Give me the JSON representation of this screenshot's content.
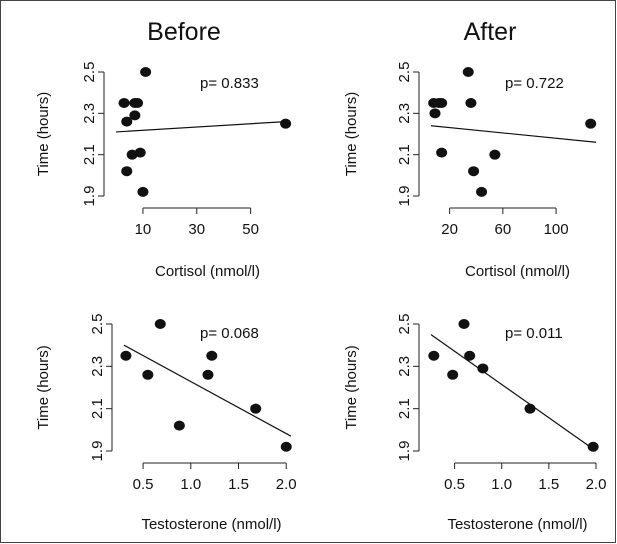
{
  "chart_data": [
    {
      "type": "scatter",
      "column_title": "Before",
      "xlabel": "Cortisol (nmol/l)",
      "ylabel": "Time (hours)",
      "annotation": "p= 0.833",
      "xlim": [
        0,
        65
      ],
      "ylim": [
        1.9,
        2.5
      ],
      "xticks": [
        "10",
        "30",
        "50"
      ],
      "yticks": [
        "1.9",
        "2.1",
        "2.3",
        "2.5"
      ],
      "points": [
        {
          "x": 3,
          "y": 2.35
        },
        {
          "x": 4,
          "y": 2.02
        },
        {
          "x": 4,
          "y": 2.26
        },
        {
          "x": 6,
          "y": 2.1
        },
        {
          "x": 7,
          "y": 2.29
        },
        {
          "x": 7,
          "y": 2.35
        },
        {
          "x": 8,
          "y": 2.35
        },
        {
          "x": 9,
          "y": 2.11
        },
        {
          "x": 10,
          "y": 1.92
        },
        {
          "x": 11,
          "y": 2.5
        },
        {
          "x": 63,
          "y": 2.25
        }
      ],
      "fit": [
        [
          0,
          2.21
        ],
        [
          63,
          2.26
        ]
      ]
    },
    {
      "type": "scatter",
      "column_title": "After",
      "xlabel": "Cortisol (nmol/l)",
      "ylabel": "Time (hours)",
      "annotation": "p= 0.722",
      "xlim": [
        6,
        130
      ],
      "ylim": [
        1.9,
        2.5
      ],
      "xticks": [
        "20",
        "60",
        "100"
      ],
      "yticks": [
        "1.9",
        "2.1",
        "2.3",
        "2.5"
      ],
      "points": [
        {
          "x": 8,
          "y": 2.35
        },
        {
          "x": 9,
          "y": 2.3
        },
        {
          "x": 12,
          "y": 2.35
        },
        {
          "x": 14,
          "y": 2.35
        },
        {
          "x": 14,
          "y": 2.11
        },
        {
          "x": 34,
          "y": 2.5
        },
        {
          "x": 36,
          "y": 2.35
        },
        {
          "x": 38,
          "y": 2.02
        },
        {
          "x": 44,
          "y": 1.92
        },
        {
          "x": 54,
          "y": 2.1
        },
        {
          "x": 126,
          "y": 2.25
        }
      ],
      "fit": [
        [
          6,
          2.24
        ],
        [
          130,
          2.16
        ]
      ]
    },
    {
      "type": "scatter",
      "xlabel": "Testosterone (nmol/l)",
      "ylabel": "Time (hours)",
      "annotation": "p= 0.068",
      "xlim": [
        0.3,
        2.05
      ],
      "ylim": [
        1.9,
        2.5
      ],
      "xticks": [
        "0.5",
        "1.0",
        "1.5",
        "2.0"
      ],
      "yticks": [
        "1.9",
        "2.1",
        "2.3",
        "2.5"
      ],
      "points": [
        {
          "x": 0.32,
          "y": 2.35
        },
        {
          "x": 0.55,
          "y": 2.26
        },
        {
          "x": 0.68,
          "y": 2.5
        },
        {
          "x": 0.88,
          "y": 2.02
        },
        {
          "x": 1.18,
          "y": 2.26
        },
        {
          "x": 1.22,
          "y": 2.35
        },
        {
          "x": 1.68,
          "y": 2.1
        },
        {
          "x": 2.0,
          "y": 1.92
        }
      ],
      "fit": [
        [
          0.3,
          2.4
        ],
        [
          2.05,
          1.97
        ]
      ]
    },
    {
      "type": "scatter",
      "xlabel": "Testosterone (nmol/l)",
      "ylabel": "Time (hours)",
      "annotation": "p= 0.011",
      "xlim": [
        0.25,
        2.0
      ],
      "ylim": [
        1.9,
        2.5
      ],
      "xticks": [
        "0.5",
        "1.0",
        "1.5",
        "2.0"
      ],
      "yticks": [
        "1.9",
        "2.1",
        "2.3",
        "2.5"
      ],
      "points": [
        {
          "x": 0.28,
          "y": 2.35
        },
        {
          "x": 0.48,
          "y": 2.26
        },
        {
          "x": 0.6,
          "y": 2.5
        },
        {
          "x": 0.66,
          "y": 2.35
        },
        {
          "x": 0.8,
          "y": 2.29
        },
        {
          "x": 1.3,
          "y": 2.1
        },
        {
          "x": 1.97,
          "y": 1.92
        }
      ],
      "fit": [
        [
          0.25,
          2.45
        ],
        [
          2.0,
          1.9
        ]
      ]
    }
  ]
}
